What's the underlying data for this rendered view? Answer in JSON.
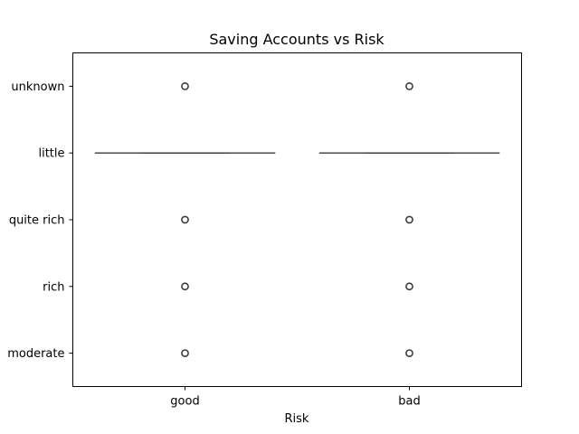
{
  "chart_data": {
    "type": "boxplot",
    "title": "Saving Accounts vs Risk",
    "xlabel": "Risk",
    "ylabel": "",
    "x_categories": [
      "good",
      "bad"
    ],
    "y_categories": [
      "unknown",
      "little",
      "quite rich",
      "rich",
      "moderate"
    ],
    "boxes": [
      {
        "category": "good",
        "whisker_low": "little",
        "q1": "little",
        "median": "little",
        "q3": "little",
        "whisker_high": "little",
        "outliers": [
          "unknown",
          "quite rich",
          "rich",
          "moderate"
        ]
      },
      {
        "category": "bad",
        "whisker_low": "little",
        "q1": "little",
        "median": "little",
        "q3": "little",
        "whisker_high": "little",
        "outliers": [
          "unknown",
          "quite rich",
          "rich",
          "moderate"
        ]
      }
    ],
    "grid": false,
    "legend": "none",
    "colors": {
      "box_line": "#3d3d3d",
      "axis": "#000000"
    }
  }
}
